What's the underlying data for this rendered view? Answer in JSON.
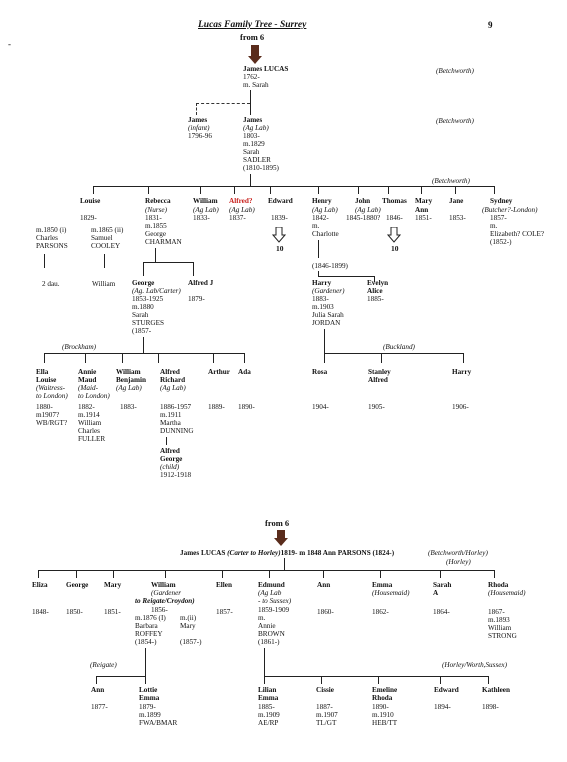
{
  "header": {
    "title": "Lucas Family Tree - Surrey",
    "page": "9"
  },
  "part1": {
    "from": "from 6",
    "root": {
      "name": "James LUCAS",
      "lines": [
        "1762-",
        "m. Sarah"
      ],
      "place": "(Betchworth)"
    },
    "gen2": {
      "james_infant": {
        "name": "James",
        "note": "(infant)",
        "dates": "1796-96"
      },
      "james_aglab": {
        "name": "James",
        "note": "(Ag Lab)",
        "lines": [
          "1803-",
          "m.1829",
          "Sarah",
          "SADLER",
          "(1810-1895)"
        ]
      },
      "place": "(Betchworth)"
    },
    "gen3": {
      "place": "(Betchworth)",
      "louise": {
        "name": "Louise",
        "lines": [
          "1829-"
        ],
        "m1": [
          "m.1850 (i)",
          "Charles",
          "PARSONS"
        ],
        "m2": [
          "m.1865 (ii)",
          "Samuel",
          "COOLEY"
        ],
        "child1": "2 dau.",
        "child2": "William"
      },
      "rebecca": {
        "name": "Rebecca",
        "note": "(Nurse)",
        "lines": [
          "1831-",
          "m.1855",
          "George",
          "CHARMAN"
        ]
      },
      "william": {
        "name": "William",
        "note": "(Ag Lab)",
        "dates": "1833-"
      },
      "alfred": {
        "name": "Alfred?",
        "note": "(Ag Lab)",
        "dates": "1837-"
      },
      "edward": {
        "name": "Edward",
        "dates": "1839-",
        "ref": "10"
      },
      "henry": {
        "name": "Henry",
        "note": "(Ag Lab)",
        "lines": [
          "1842-",
          "m.",
          "Charlotte"
        ],
        "spouse_dates": "(1846-1899)"
      },
      "john": {
        "name": "John",
        "note": "(Ag Lab)",
        "dates": "1845-1880?"
      },
      "thomas": {
        "name": "Thomas",
        "dates": "1846-",
        "ref": "10"
      },
      "mary_ann": {
        "name": "Mary",
        "name2": "Ann",
        "dates": "1851-"
      },
      "jane": {
        "name": "Jane",
        "dates": "1853-"
      },
      "sydney": {
        "name": "Sydney",
        "note": "(Butcher?-London)",
        "lines": [
          "1857-",
          "m.",
          "Elizabeth? COLE?",
          "(1852-)"
        ]
      }
    },
    "gen4": {
      "george": {
        "name": "George",
        "note": "(Ag. Lab/Carter)",
        "lines": [
          "1853-1925",
          "m.1880",
          "Sarah",
          "STURGES",
          "(1857-"
        ]
      },
      "alfred_j": {
        "name": "Alfred J",
        "dates": "1879-"
      },
      "harry": {
        "name": "Harry",
        "note": "(Gardener)",
        "lines": [
          "1883-",
          "m.1903",
          "Julia Sarah",
          "JORDAN"
        ]
      },
      "evelyn": {
        "name": "Evelyn",
        "name2": "Alice",
        "dates": "1885-"
      }
    },
    "gen5": {
      "place_left": "(Brockham)",
      "place_right": "(Buckland)",
      "ella": {
        "name": "Ella",
        "name2": "Louise",
        "note": [
          "(Waitress-",
          "to London)"
        ],
        "lines": [
          "1880-",
          "m1907?",
          "WB/RGT?"
        ]
      },
      "annie": {
        "name": "Annie",
        "name2": "Maud",
        "note": [
          "(Maid-",
          "to London)"
        ],
        "lines": [
          "1882-",
          "m.1914",
          "William",
          "Charles",
          "FULLER"
        ]
      },
      "william_b": {
        "name": "William",
        "name2": "Benjamin",
        "note": "(Ag Lab)",
        "dates": "1883-"
      },
      "alfred_r": {
        "name": "Alfred",
        "name2": "Richard",
        "note": "(Ag Lab)",
        "lines": [
          "1886-1957",
          "m.1911",
          "Martha",
          "DUNNING"
        ]
      },
      "alfred_g": {
        "name": "Alfred",
        "name2": "George",
        "note": "(child)",
        "dates": "1912-1918"
      },
      "arthur": {
        "name": "Arthur",
        "dates": "1889-"
      },
      "ada": {
        "name": "Ada",
        "dates": "1890-"
      },
      "rosa": {
        "name": "Rosa",
        "dates": "1904-"
      },
      "stanley": {
        "name": "Stanley",
        "name2": "Alfred",
        "dates": "1905-"
      },
      "harry2": {
        "name": "Harry",
        "dates": "1906-"
      }
    }
  },
  "part2": {
    "from": "from 6",
    "root": {
      "text": "James LUCAS",
      "note": "(Carter to Horley)",
      "rest": "1819- m 1848 Ann PARSONS (1824-)",
      "place": "(Betchworth/Horley)",
      "place2": "(Horley)"
    },
    "gen": {
      "eliza": {
        "name": "Eliza",
        "dates": "1848-"
      },
      "george": {
        "name": "George",
        "dates": "1850-"
      },
      "mary": {
        "name": "Mary",
        "dates": "1851-"
      },
      "william": {
        "name": "William",
        "note": [
          "(Gardener"
        ],
        "note_b": "to Reigate/Croydon)",
        "lines": [
          "1856-",
          "m.1876 (I)",
          "Barbara",
          "ROFFEY",
          "(1854-)"
        ],
        "m2": [
          "m.(ii)",
          "Mary",
          "",
          "(1857-)"
        ]
      },
      "ellen": {
        "name": "Ellen",
        "dates": "1857-"
      },
      "edmund": {
        "name": "Edmund",
        "note": [
          "(Ag Lab",
          "- to Sussex)"
        ],
        "lines": [
          "1859-1909",
          "m.",
          "Annie",
          "BROWN",
          "(1861-)"
        ]
      },
      "ann": {
        "name": "Ann",
        "dates": "1860-"
      },
      "emma": {
        "name": "Emma",
        "note": "(Housemaid)",
        "dates": "1862-"
      },
      "sarah": {
        "name": "Sarah",
        "name2": "A",
        "dates": "1864-"
      },
      "rhoda": {
        "name": "Rhoda",
        "note": "(Housemaid)",
        "lines": [
          "1867-",
          "m.1893",
          "William",
          "STRONG"
        ]
      }
    },
    "gen2": {
      "place_left": "(Reigate)",
      "place_right": "(Horley/Worth,Sussex)",
      "ann": {
        "name": "Ann",
        "dates": "1877-"
      },
      "lottie": {
        "name": "Lottie",
        "name2": "Emma",
        "lines": [
          "1879-",
          "m.1899",
          "FWA/BMAR"
        ]
      },
      "lilian": {
        "name": "Lilian",
        "name2": "Emma",
        "lines": [
          "1885-",
          "m.1909",
          "AE/RP"
        ]
      },
      "cissie": {
        "name": "Cissie",
        "lines": [
          "1887-",
          "m.1907",
          "TL/GT"
        ]
      },
      "emeline": {
        "name": "Emeline",
        "name2": "Rhoda",
        "lines": [
          "1890-",
          "m.1910",
          "HEB/TT"
        ]
      },
      "edward": {
        "name": "Edward",
        "dates": "1894-"
      },
      "kathleen": {
        "name": "Kathleen",
        "dates": "1898-"
      }
    }
  }
}
